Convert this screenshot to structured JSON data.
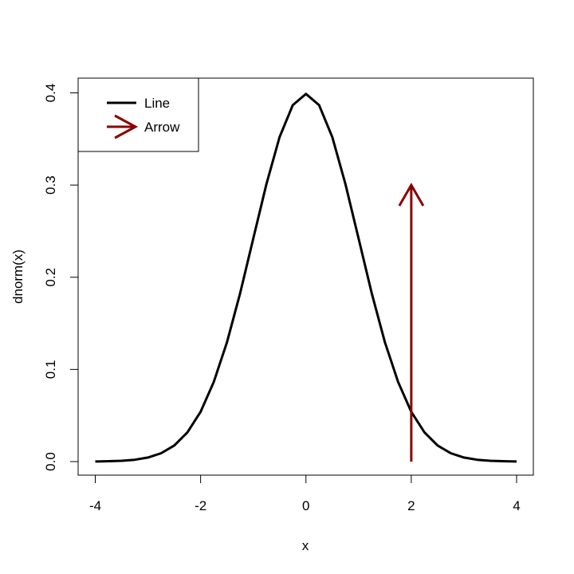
{
  "chart_data": {
    "type": "line",
    "title": "",
    "xlabel": "x",
    "ylabel": "dnorm(x)",
    "xlim": [
      -4,
      4
    ],
    "ylim": [
      0,
      0.4
    ],
    "x_ticks": [
      "-4",
      "-2",
      "0",
      "2",
      "4"
    ],
    "y_ticks": [
      "0.0",
      "0.1",
      "0.2",
      "0.3",
      "0.4"
    ],
    "grid": false,
    "legend": {
      "placement": "top-left",
      "entries": [
        "Line",
        "Arrow"
      ]
    },
    "series": [
      {
        "name": "Line",
        "color": "#000000",
        "x": [
          -4,
          -3.75,
          -3.5,
          -3.25,
          -3,
          -2.75,
          -2.5,
          -2.25,
          -2,
          -1.75,
          -1.5,
          -1.25,
          -1,
          -0.75,
          -0.5,
          -0.25,
          0,
          0.25,
          0.5,
          0.75,
          1,
          1.25,
          1.5,
          1.75,
          2,
          2.25,
          2.5,
          2.75,
          3,
          3.25,
          3.5,
          3.75,
          4
        ],
        "y": [
          0.0001,
          0.0004,
          0.0009,
          0.002,
          0.0044,
          0.0091,
          0.0175,
          0.0317,
          0.054,
          0.0863,
          0.1295,
          0.1826,
          0.242,
          0.3011,
          0.3521,
          0.3867,
          0.3989,
          0.3867,
          0.3521,
          0.3011,
          0.242,
          0.1826,
          0.1295,
          0.0863,
          0.054,
          0.0317,
          0.0175,
          0.0091,
          0.0044,
          0.002,
          0.0009,
          0.0004,
          0.0001
        ]
      }
    ],
    "arrows": [
      {
        "name": "Arrow",
        "color": "#8b0000",
        "from": [
          2,
          0
        ],
        "to": [
          2,
          0.3
        ]
      }
    ]
  }
}
